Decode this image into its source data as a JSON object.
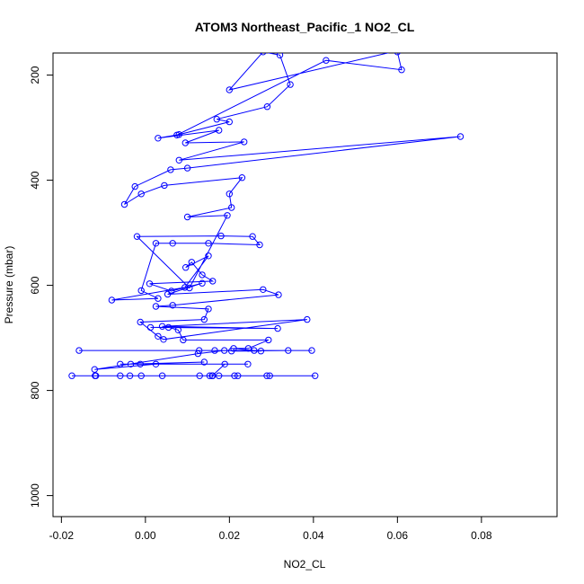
{
  "chart_data": {
    "type": "line",
    "title": "ATOM3 Northeast_Pacific_1 NO2_CL",
    "xlabel": "NO2_CL",
    "ylabel": "Pressure (mbar)",
    "xlim": [
      -0.022,
      0.098
    ],
    "ylim": [
      1040,
      158
    ],
    "y_reversed": true,
    "x_ticks": [
      -0.02,
      0.0,
      0.02,
      0.04,
      0.06,
      0.08
    ],
    "x_tick_labels": [
      "-0.02",
      "0.00",
      "0.02",
      "0.04",
      "0.06",
      "0.08"
    ],
    "y_ticks": [
      200,
      400,
      600,
      800,
      1000
    ],
    "y_tick_labels": [
      "200",
      "400",
      "600",
      "800",
      "1000"
    ],
    "grid": false,
    "legend": "none",
    "series": [
      {
        "color": "#0000ff",
        "marker": "open-circle",
        "points": [
          [
            0.0404,
            772
          ],
          [
            -0.0175,
            772
          ],
          [
            0.016,
            772
          ],
          [
            0.0296,
            772
          ],
          [
            0.022,
            772
          ],
          [
            -0.006,
            772
          ],
          [
            0.0129,
            772
          ],
          [
            -0.012,
            772
          ],
          [
            0.0289,
            772
          ],
          [
            0.004,
            772
          ],
          [
            0.0212,
            772
          ],
          [
            -0.001,
            772
          ],
          [
            0.0153,
            772
          ],
          [
            -0.0118,
            772
          ],
          [
            0.0175,
            772
          ],
          [
            -0.0037,
            772
          ],
          [
            0.0159,
            772
          ],
          [
            0.0189,
            750
          ],
          [
            -0.0035,
            750
          ],
          [
            0.014,
            746
          ],
          [
            -0.0012,
            750
          ],
          [
            0.0244,
            750
          ],
          [
            -0.006,
            750
          ],
          [
            0.0025,
            750
          ],
          [
            -0.0121,
            760
          ],
          [
            0.0125,
            730
          ],
          [
            0.0188,
            724
          ],
          [
            -0.0158,
            724
          ],
          [
            0.0396,
            724
          ],
          [
            0.0128,
            724
          ],
          [
            0.034,
            724
          ],
          [
            0.0205,
            725
          ],
          [
            0.0275,
            725
          ],
          [
            0.0165,
            724
          ],
          [
            0.0259,
            724
          ],
          [
            0.021,
            720
          ],
          [
            0.0245,
            720
          ],
          [
            0.0293,
            704
          ],
          [
            0.009,
            704
          ],
          [
            0.0078,
            685
          ],
          [
            0.0055,
            680
          ],
          [
            0.0012,
            680
          ],
          [
            0.0315,
            682
          ],
          [
            0.004,
            678
          ],
          [
            0.0385,
            665
          ],
          [
            0.0043,
            703
          ],
          [
            0.003,
            697
          ],
          [
            -0.0012,
            670
          ],
          [
            0.014,
            665
          ],
          [
            0.015,
            645
          ],
          [
            0.0025,
            640
          ],
          [
            0.0065,
            638
          ],
          [
            0.0317,
            618
          ],
          [
            0.028,
            608
          ],
          [
            0.0053,
            617
          ],
          [
            0.0135,
            596
          ],
          [
            0.0062,
            611
          ],
          [
            0.001,
            597
          ],
          [
            0.016,
            592
          ],
          [
            0.0135,
            580
          ],
          [
            0.011,
            556
          ],
          [
            0.0096,
            566
          ],
          [
            0.015,
            544
          ],
          [
            0.0094,
            604
          ],
          [
            -0.008,
            628
          ],
          [
            0.003,
            625
          ],
          [
            -0.001,
            610
          ],
          [
            0.0025,
            520
          ],
          [
            0.0065,
            520
          ],
          [
            0.015,
            520
          ],
          [
            0.0272,
            523
          ],
          [
            0.0255,
            507
          ],
          [
            0.018,
            506
          ],
          [
            -0.002,
            507
          ],
          [
            0.0105,
            605
          ],
          [
            0.0195,
            467
          ],
          [
            0.01,
            470
          ],
          [
            0.0205,
            452
          ],
          [
            0.02,
            426
          ],
          [
            0.023,
            395
          ],
          [
            0.0045,
            410
          ],
          [
            -0.001,
            426
          ],
          [
            -0.005,
            446
          ],
          [
            -0.0025,
            412
          ],
          [
            0.006,
            380
          ],
          [
            0.01,
            377
          ],
          [
            0.075,
            317
          ],
          [
            0.008,
            362
          ],
          [
            0.0235,
            327
          ],
          [
            0.0095,
            329
          ],
          [
            0.0175,
            305
          ],
          [
            0.003,
            320
          ],
          [
            0.008,
            313
          ],
          [
            0.02,
            289
          ],
          [
            0.017,
            284
          ],
          [
            0.029,
            260
          ],
          [
            0.0345,
            218
          ],
          [
            0.032,
            162
          ],
          [
            0.028,
            156
          ],
          [
            0.02,
            228
          ],
          [
            0.062,
            150
          ],
          [
            0.06,
            156
          ],
          [
            0.061,
            190
          ],
          [
            0.043,
            172
          ],
          [
            0.0075,
            314
          ]
        ]
      }
    ]
  }
}
